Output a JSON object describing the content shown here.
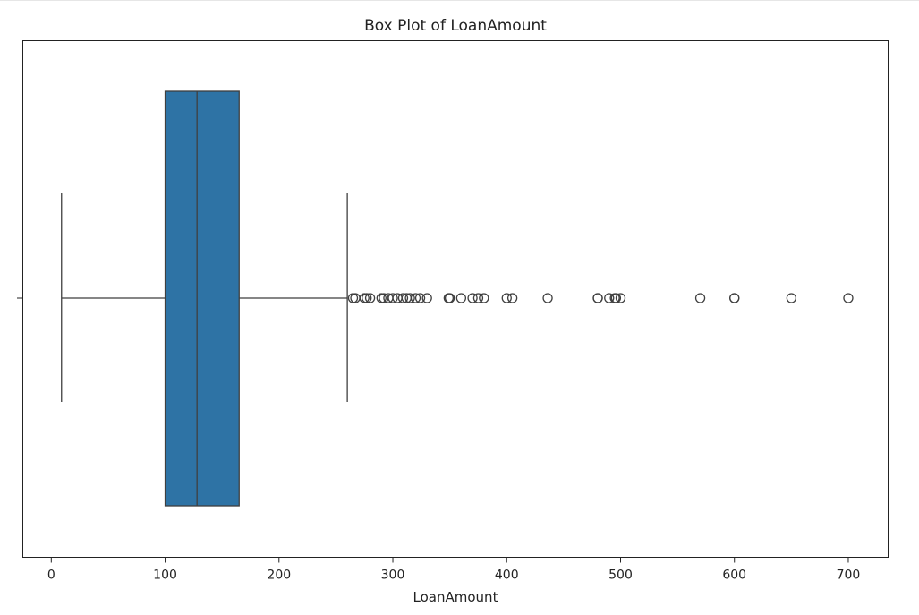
{
  "chart_data": {
    "type": "box",
    "title": "Box Plot of LoanAmount",
    "xlabel": "LoanAmount",
    "ylabel": "",
    "xlim": [
      -25,
      735
    ],
    "x_ticks": [
      0,
      100,
      200,
      300,
      400,
      500,
      600,
      700
    ],
    "x_tick_labels": [
      "0",
      "100",
      "200",
      "300",
      "400",
      "500",
      "600",
      "700"
    ],
    "grid": false,
    "box": {
      "whisker_low": 9,
      "q1": 100,
      "median": 128,
      "q3": 165,
      "whisker_high": 260
    },
    "outliers": [
      265,
      267,
      275,
      277,
      280,
      290,
      292,
      296,
      300,
      304,
      309,
      312,
      315,
      320,
      324,
      330,
      349,
      350,
      360,
      370,
      375,
      380,
      400,
      405,
      436,
      480,
      480,
      490,
      495,
      496,
      500,
      570,
      600,
      600,
      650,
      700
    ],
    "colors": {
      "box_fill": "#2e73a5",
      "line": "#3f3f3f",
      "outlier_edge": "#3f3f3f"
    }
  }
}
